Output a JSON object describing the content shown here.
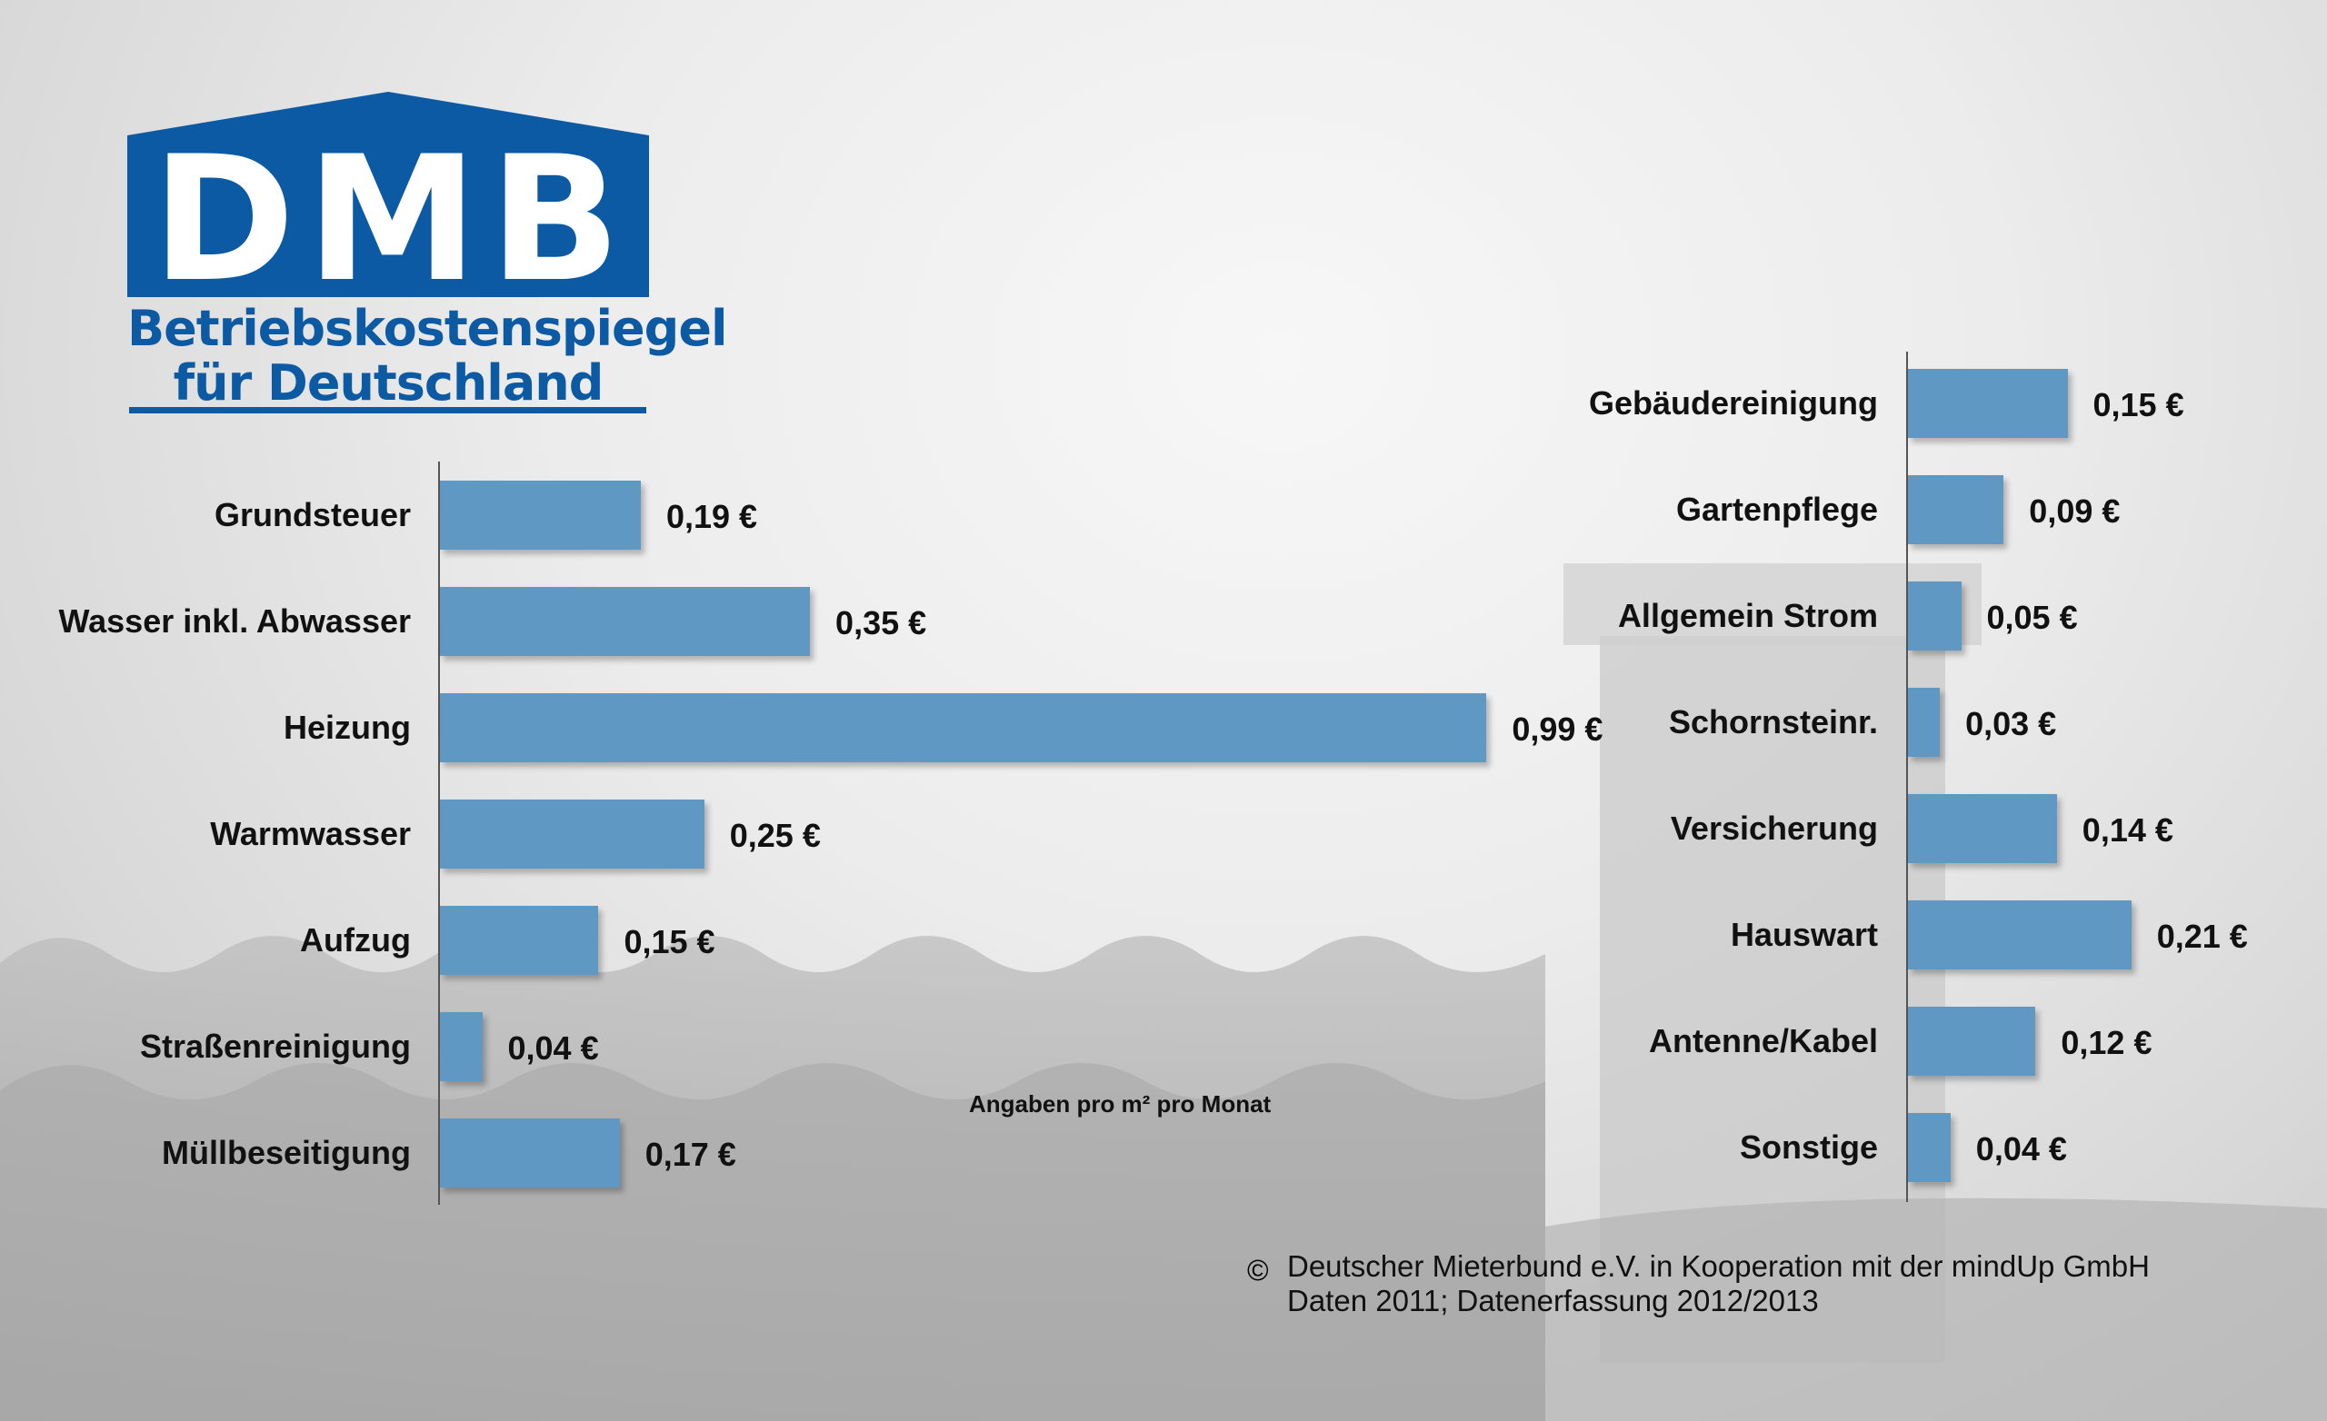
{
  "logo": {
    "mark": "DMB",
    "line1": "Betriebskostenspiegel",
    "line2": "für Deutschland",
    "color": "#0b5aa3"
  },
  "chart_data": [
    {
      "type": "bar",
      "orientation": "horizontal",
      "unit": "€ pro m² pro Monat",
      "categories": [
        "Grundsteuer",
        "Wasser inkl. Abwasser",
        "Heizung",
        "Warmwasser",
        "Aufzug",
        "Straßenreinigung",
        "Müllbeseitigung"
      ],
      "values": [
        0.19,
        0.35,
        0.99,
        0.25,
        0.15,
        0.04,
        0.17
      ],
      "labels": [
        "0,19 €",
        "0,35 €",
        "0,99 €",
        "0,25 €",
        "0,15 €",
        "0,04 €",
        "0,17 €"
      ],
      "bar_color": "#5f98c3"
    },
    {
      "type": "bar",
      "orientation": "horizontal",
      "unit": "€ pro m² pro Monat",
      "categories": [
        "Gebäudereinigung",
        "Gartenpflege",
        "Allgemein Strom",
        "Schornsteinr.",
        "Versicherung",
        "Hauswart",
        "Antenne/Kabel",
        "Sonstige"
      ],
      "values": [
        0.15,
        0.09,
        0.05,
        0.03,
        0.14,
        0.21,
        0.12,
        0.04
      ],
      "labels": [
        "0,15 €",
        "0,09 €",
        "0,05 €",
        "0,03 €",
        "0,14 €",
        "0,21 €",
        "0,12 €",
        "0,04 €"
      ],
      "bar_color": "#5f98c3"
    }
  ],
  "note": "Angaben pro m² pro Monat",
  "copyright_symbol": "©",
  "credit_line1": "Deutscher Mieterbund e.V. in Kooperation mit der mindUp GmbH",
  "credit_line2": "Daten 2011; Datenerfassung 2012/2013"
}
